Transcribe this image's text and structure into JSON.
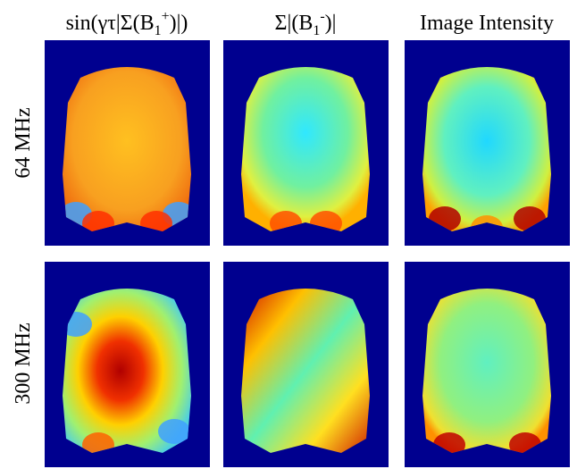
{
  "column_headers": [
    [
      "sin(γτ|Σ(B",
      "1",
      "+",
      ")|)"
    ],
    [
      "Σ|(B",
      "1",
      "-",
      ")|"
    ],
    [
      "Image Intensity"
    ]
  ],
  "row_labels": [
    "64 MHz",
    "300 MHz"
  ]
}
